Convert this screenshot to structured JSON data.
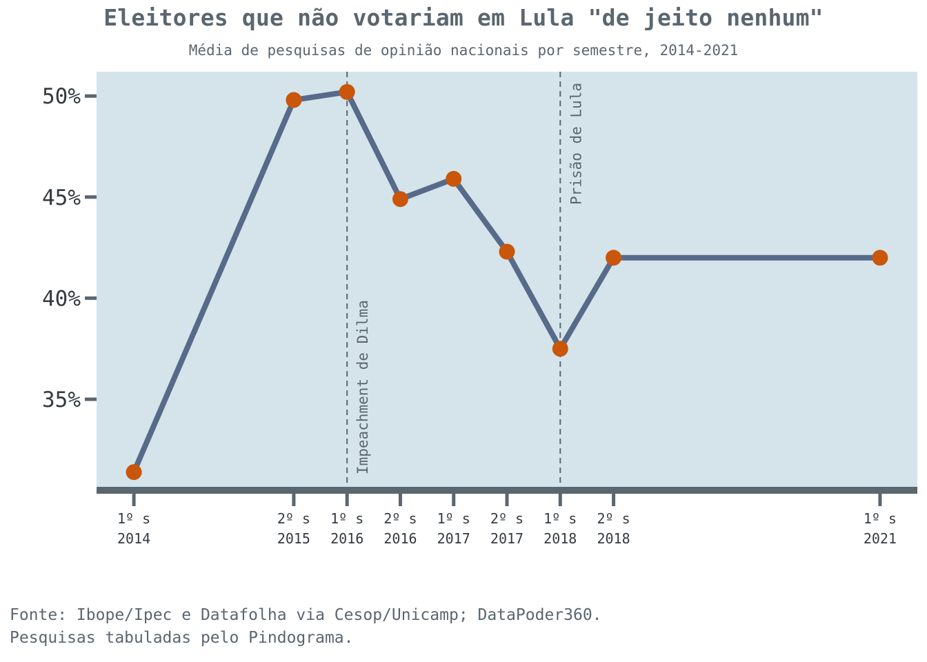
{
  "chart_data": {
    "type": "line",
    "title": "Eleitores que não votariam em Lula \"de jeito nenhum\"",
    "subtitle": "Média de pesquisas de opinião nacionais por semestre, 2014-2021",
    "xlabel": "",
    "ylabel": "",
    "ylim": [
      30.5,
      51.2
    ],
    "yticks": [
      35,
      40,
      45,
      50
    ],
    "ytick_labels": [
      "35%",
      "40%",
      "45%",
      "50%"
    ],
    "x_semester_index": [
      0,
      3,
      4,
      5,
      6,
      7,
      8,
      9,
      14
    ],
    "xlim": [
      -0.7,
      14.7
    ],
    "categories": [
      [
        "1º s",
        "2014"
      ],
      [
        "2º s",
        "2015"
      ],
      [
        "1º s",
        "2016"
      ],
      [
        "2º s",
        "2016"
      ],
      [
        "1º s",
        "2017"
      ],
      [
        "2º s",
        "2017"
      ],
      [
        "1º s",
        "2018"
      ],
      [
        "2º s",
        "2018"
      ],
      [
        "1º s",
        "2021"
      ]
    ],
    "series": [
      {
        "values": [
          31.4,
          49.8,
          50.2,
          44.9,
          45.9,
          42.3,
          37.5,
          42.0,
          42.0
        ],
        "line_color": "#586a8a",
        "marker_color": "#c9560a"
      }
    ],
    "annotations": [
      {
        "label": "Impeachment de Dilma",
        "x_semester_index": 4,
        "label_side": "right",
        "label_anchor": "bottom"
      },
      {
        "label": "Prisão de Lula",
        "x_semester_index": 8,
        "label_side": "right",
        "label_anchor": "top"
      }
    ],
    "grid": false,
    "background_color": "#d4e4ea",
    "axis_color": "#5a6670"
  },
  "caption": {
    "line1": "Fonte: Ibope/Ipec e Datafolha via Cesop/Unicamp; DataPoder360.",
    "line2": "Pesquisas tabuladas pelo Pindograma."
  }
}
